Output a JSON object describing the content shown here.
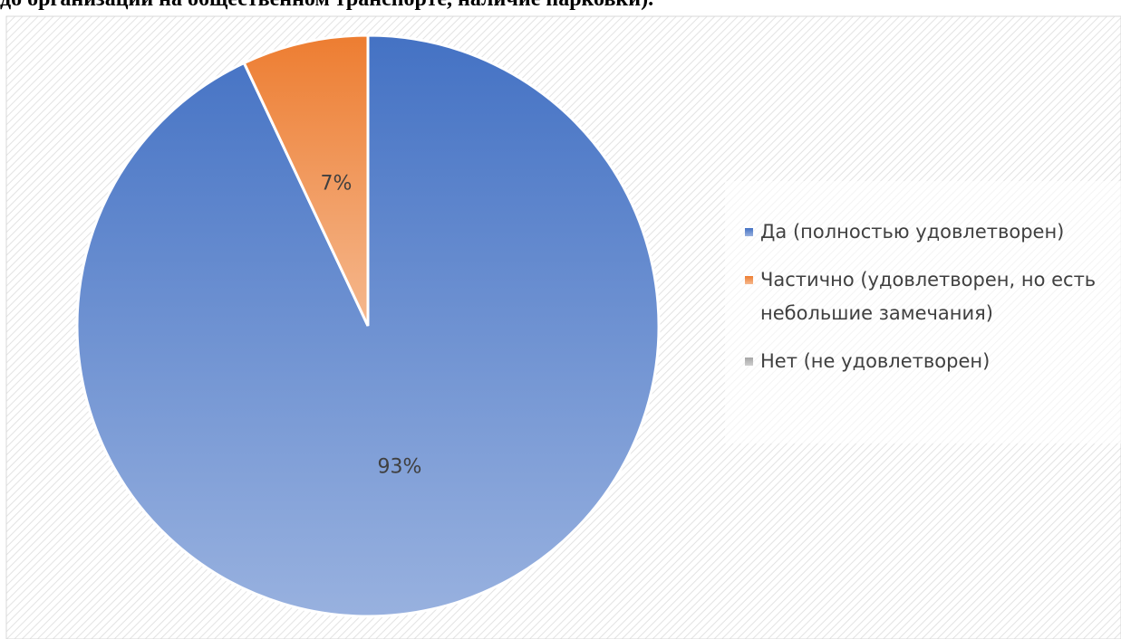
{
  "chart_data": {
    "type": "pie",
    "title": "до организации на общественном транспорте, наличие парковки).",
    "categories": [
      "Да (полностью удовлетворен)",
      "Частично (удовлетворен, но есть небольшие замечания)",
      "Нет (не удовлетворен)"
    ],
    "values": [
      93,
      7,
      0
    ],
    "value_labels": [
      "93%",
      "7%",
      null
    ],
    "colors": [
      "#4472c4",
      "#ed7d31",
      "#a5a5a5"
    ],
    "legend": "right"
  }
}
